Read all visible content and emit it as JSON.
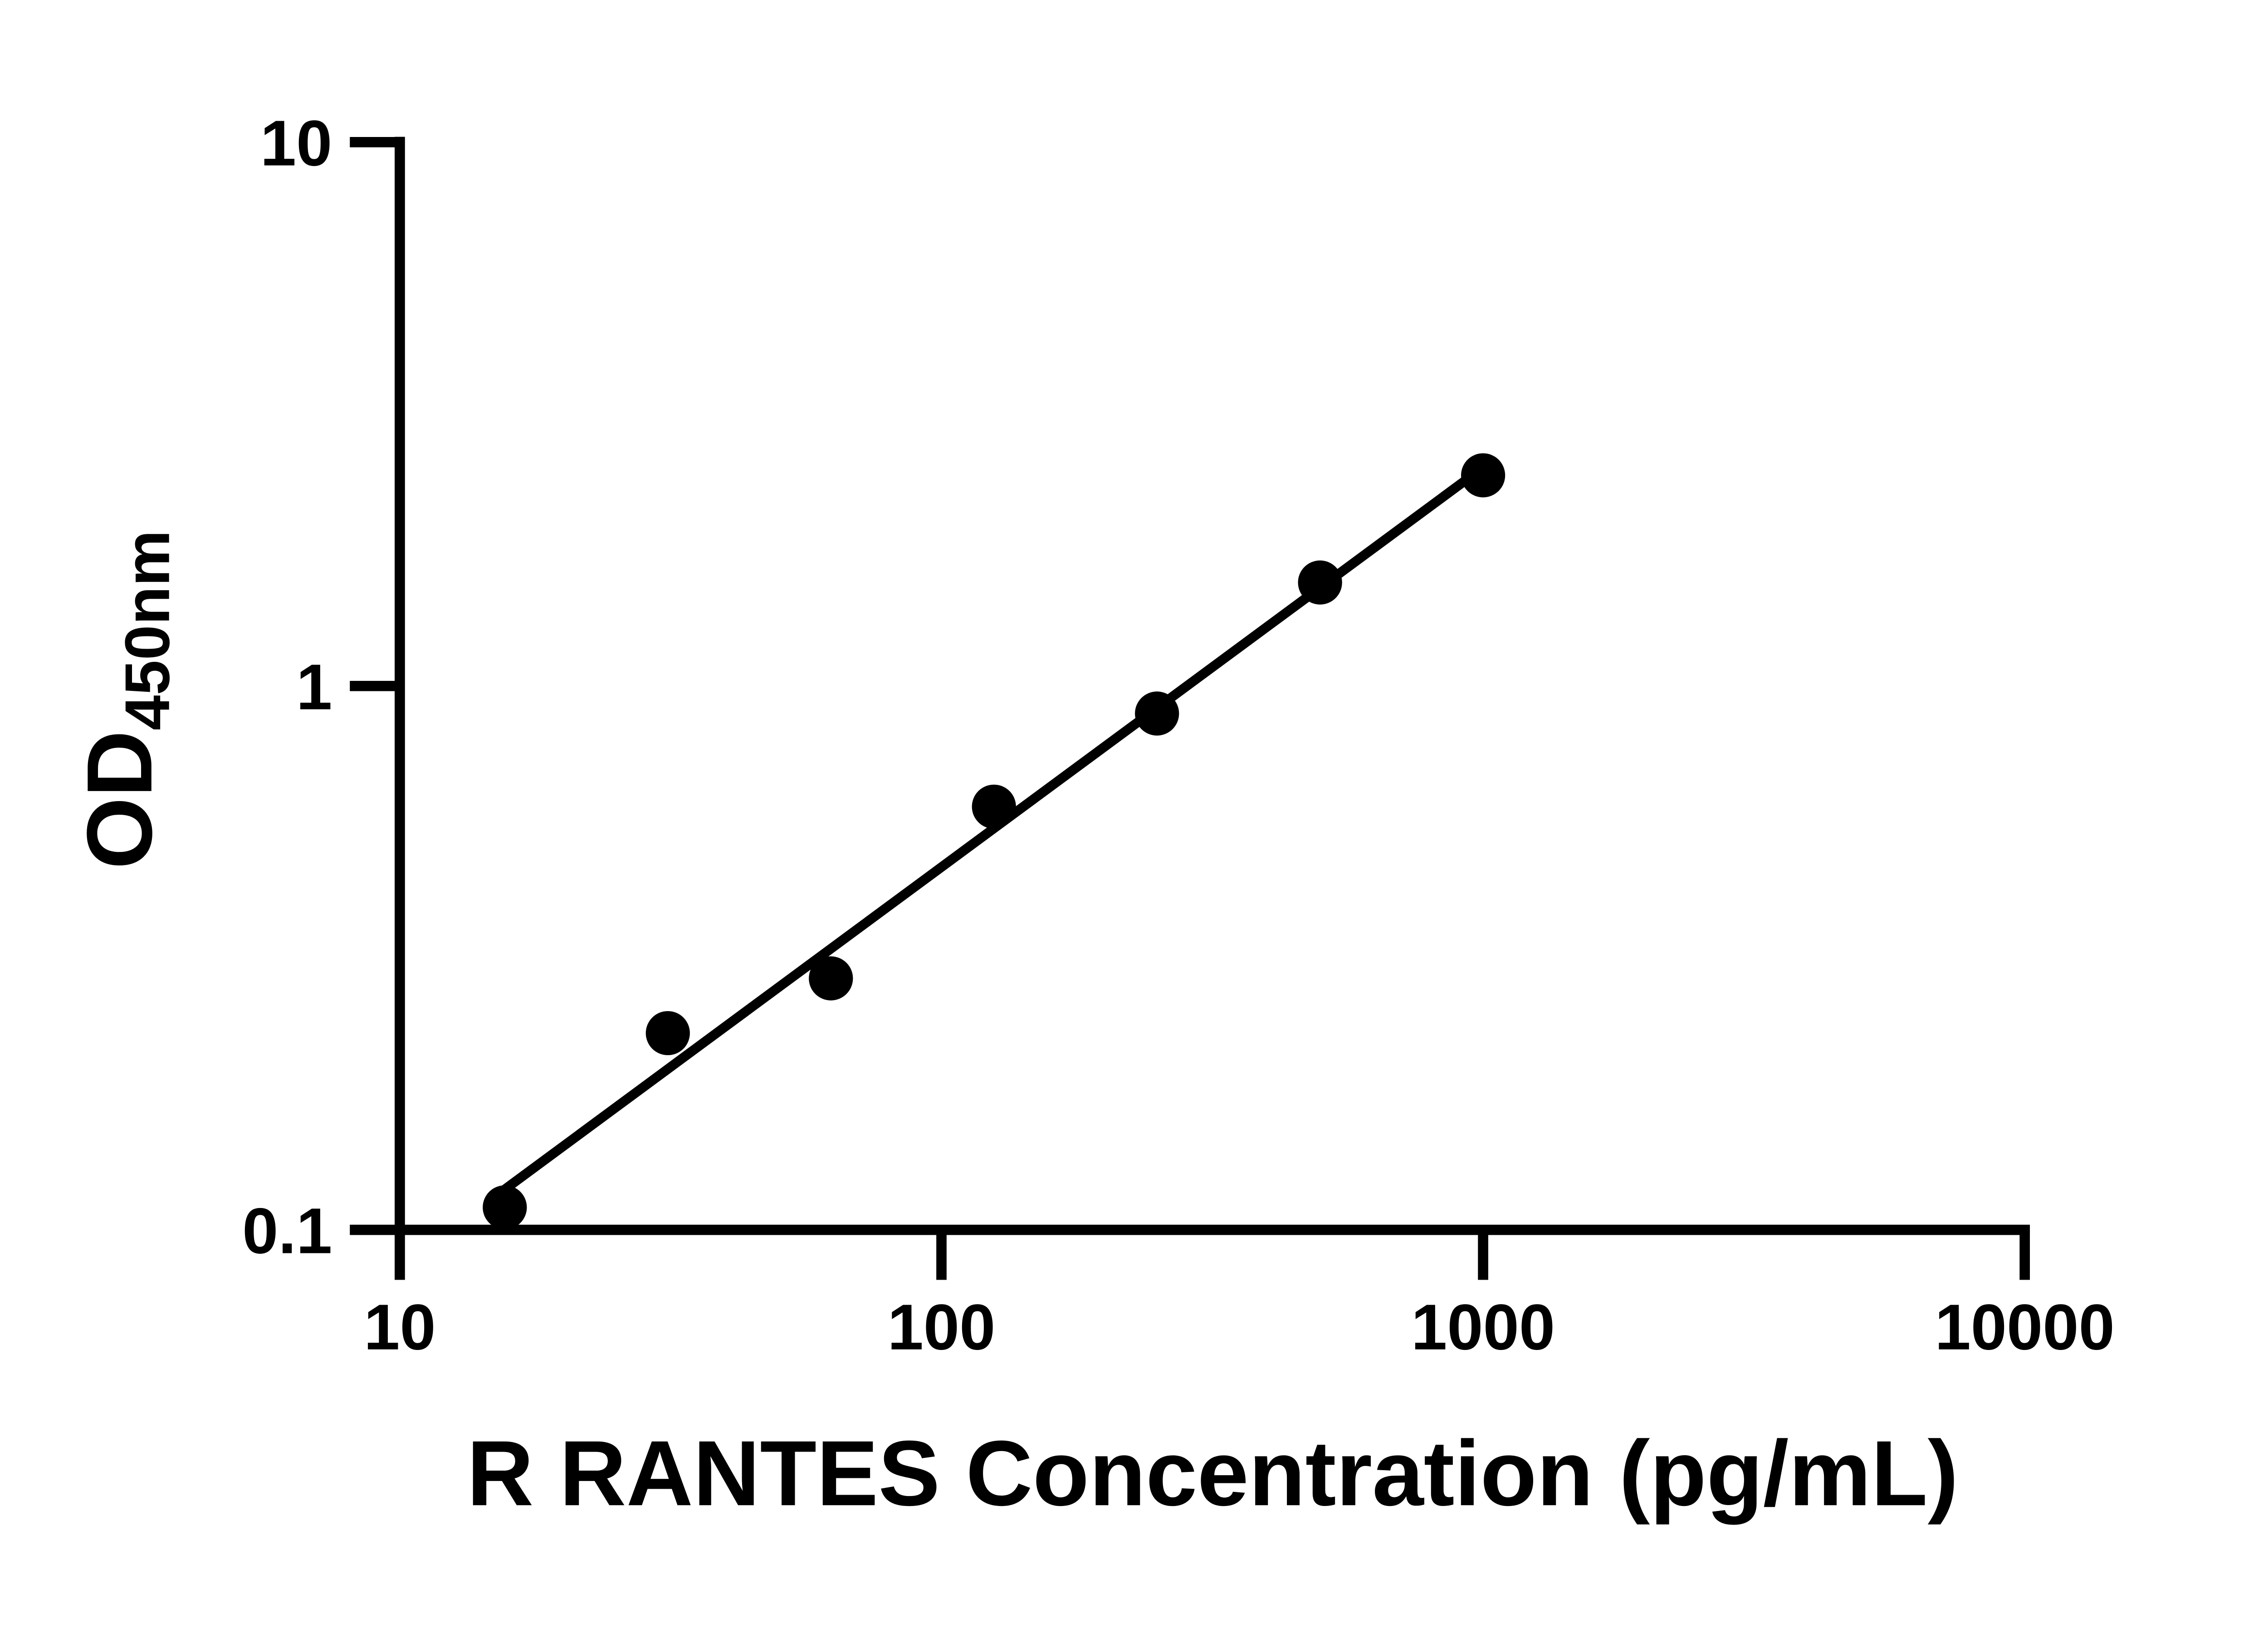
{
  "page": {
    "background": "#ffffff"
  },
  "chart_data": {
    "type": "scatter",
    "x_scale": "log",
    "y_scale": "log",
    "title": "",
    "xlabel": "R RANTES Concentration (pg/mL)",
    "ylabel": "OD",
    "ylabel_subscript": "450nm",
    "x_ticks": [
      10,
      100,
      1000,
      10000
    ],
    "x_tick_labels": [
      "10",
      "100",
      "1000",
      "10000"
    ],
    "y_ticks": [
      0.1,
      1,
      10
    ],
    "y_tick_labels": [
      "0.1",
      "1",
      "10"
    ],
    "xlim": [
      10,
      10000
    ],
    "ylim": [
      0.1,
      10
    ],
    "grid": false,
    "legend": false,
    "series": [
      {
        "x": [
          15.625,
          31.25,
          62.5,
          125,
          250,
          500,
          1000
        ],
        "y": [
          0.11,
          0.23,
          0.29,
          0.6,
          0.89,
          1.55,
          2.44
        ],
        "marker": "circle",
        "color": "#000000"
      }
    ],
    "fit_line": {
      "type": "linear-in-loglog",
      "slope": 0.735,
      "intercept": -1.803,
      "x_start": 15.625,
      "x_end": 1000,
      "color": "#000000"
    },
    "colors": {
      "axis": "#000000",
      "text": "#000000",
      "background": "#ffffff"
    }
  }
}
